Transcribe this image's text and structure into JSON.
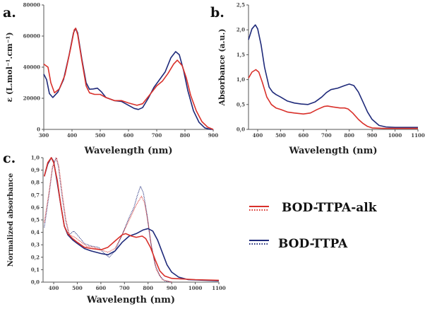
{
  "colors": {
    "BOD-TTPA": "#1f2a7a",
    "BOD-TTPA-alk": "#d9302a"
  },
  "legend": {
    "position": "right",
    "items": [
      {
        "label": "BOD-TTPA-alk",
        "color": "#d9302a",
        "styles": [
          "solid",
          "dotted"
        ]
      },
      {
        "label": "BOD-TTPA",
        "color": "#1f2a7a",
        "styles": [
          "solid",
          "dotted"
        ]
      }
    ]
  },
  "chart_data": [
    {
      "panel": "a.",
      "type": "line",
      "xlabel": "Wavelength (nm)",
      "ylabel": "ε (L.mol⁻¹.cm⁻¹)",
      "xlim": [
        300,
        900
      ],
      "ylim": [
        0,
        80000
      ],
      "xticks": [
        "300",
        "400",
        "500",
        "600",
        "700",
        "800",
        "900"
      ],
      "yticks": [
        "0",
        "20000",
        "40000",
        "60000",
        "80000"
      ],
      "grid": false,
      "series": [
        {
          "compound": "BOD-TTPA",
          "style": "solid",
          "points": [
            [
              300,
              35500
            ],
            [
              310,
              32000
            ],
            [
              320,
              23000
            ],
            [
              332,
              20500
            ],
            [
              350,
              24000
            ],
            [
              370,
              32000
            ],
            [
              390,
              48000
            ],
            [
              405,
              62000
            ],
            [
              413,
              65000
            ],
            [
              420,
              62000
            ],
            [
              435,
              45000
            ],
            [
              450,
              30000
            ],
            [
              462,
              25800
            ],
            [
              475,
              26000
            ],
            [
              490,
              26500
            ],
            [
              505,
              24000
            ],
            [
              520,
              20500
            ],
            [
              550,
              18500
            ],
            [
              575,
              18000
            ],
            [
              600,
              15500
            ],
            [
              620,
              13500
            ],
            [
              635,
              12800
            ],
            [
              650,
              14000
            ],
            [
              670,
              20000
            ],
            [
              690,
              27000
            ],
            [
              710,
              32000
            ],
            [
              730,
              37000
            ],
            [
              750,
              46000
            ],
            [
              767,
              50000
            ],
            [
              780,
              48000
            ],
            [
              795,
              38000
            ],
            [
              810,
              25000
            ],
            [
              830,
              12000
            ],
            [
              850,
              4500
            ],
            [
              870,
              1000
            ],
            [
              890,
              0
            ],
            [
              900,
              0
            ]
          ]
        },
        {
          "compound": "BOD-TTPA-alk",
          "style": "solid",
          "points": [
            [
              300,
              42000
            ],
            [
              315,
              40000
            ],
            [
              325,
              30000
            ],
            [
              338,
              23500
            ],
            [
              355,
              26000
            ],
            [
              375,
              35000
            ],
            [
              395,
              52000
            ],
            [
              408,
              64000
            ],
            [
              413,
              65000
            ],
            [
              420,
              61000
            ],
            [
              435,
              44000
            ],
            [
              450,
              28000
            ],
            [
              462,
              23500
            ],
            [
              480,
              22500
            ],
            [
              500,
              22500
            ],
            [
              520,
              20500
            ],
            [
              550,
              18500
            ],
            [
              575,
              18500
            ],
            [
              600,
              17000
            ],
            [
              630,
              15500
            ],
            [
              650,
              16500
            ],
            [
              670,
              21000
            ],
            [
              700,
              28000
            ],
            [
              720,
              31000
            ],
            [
              740,
              36000
            ],
            [
              760,
              42000
            ],
            [
              773,
              44500
            ],
            [
              790,
              41000
            ],
            [
              805,
              33000
            ],
            [
              820,
              22000
            ],
            [
              840,
              12000
            ],
            [
              860,
              5000
            ],
            [
              880,
              1500
            ],
            [
              900,
              0
            ]
          ]
        }
      ]
    },
    {
      "panel": "b.",
      "type": "line",
      "xlabel": "Wavelength (nm)",
      "ylabel": "Absorbance (a.u.)",
      "xlim": [
        360,
        1100
      ],
      "ylim": [
        0,
        2.5
      ],
      "xticks": [
        "400",
        "500",
        "600",
        "700",
        "800",
        "900",
        "1000",
        "1100"
      ],
      "yticks": [
        "0,0",
        "0,5",
        "1,0",
        "1,5",
        "2,0",
        "2,5"
      ],
      "grid": false,
      "series": [
        {
          "compound": "BOD-TTPA",
          "style": "solid",
          "points": [
            [
              360,
              1.8
            ],
            [
              375,
              2.02
            ],
            [
              390,
              2.1
            ],
            [
              400,
              2.02
            ],
            [
              415,
              1.7
            ],
            [
              430,
              1.25
            ],
            [
              450,
              0.85
            ],
            [
              465,
              0.75
            ],
            [
              480,
              0.7
            ],
            [
              500,
              0.65
            ],
            [
              530,
              0.57
            ],
            [
              560,
              0.53
            ],
            [
              590,
              0.51
            ],
            [
              620,
              0.5
            ],
            [
              650,
              0.55
            ],
            [
              680,
              0.65
            ],
            [
              700,
              0.74
            ],
            [
              720,
              0.8
            ],
            [
              750,
              0.83
            ],
            [
              780,
              0.88
            ],
            [
              800,
              0.91
            ],
            [
              820,
              0.88
            ],
            [
              840,
              0.75
            ],
            [
              860,
              0.55
            ],
            [
              880,
              0.35
            ],
            [
              900,
              0.2
            ],
            [
              930,
              0.08
            ],
            [
              960,
              0.05
            ],
            [
              1000,
              0.04
            ],
            [
              1100,
              0.04
            ]
          ]
        },
        {
          "compound": "BOD-TTPA-alk",
          "style": "solid",
          "points": [
            [
              360,
              1.03
            ],
            [
              375,
              1.15
            ],
            [
              392,
              1.2
            ],
            [
              405,
              1.15
            ],
            [
              420,
              0.95
            ],
            [
              440,
              0.65
            ],
            [
              460,
              0.5
            ],
            [
              480,
              0.43
            ],
            [
              500,
              0.4
            ],
            [
              530,
              0.35
            ],
            [
              560,
              0.33
            ],
            [
              600,
              0.31
            ],
            [
              630,
              0.33
            ],
            [
              660,
              0.4
            ],
            [
              690,
              0.46
            ],
            [
              705,
              0.47
            ],
            [
              730,
              0.45
            ],
            [
              760,
              0.43
            ],
            [
              780,
              0.43
            ],
            [
              795,
              0.41
            ],
            [
              815,
              0.33
            ],
            [
              840,
              0.2
            ],
            [
              860,
              0.12
            ],
            [
              880,
              0.06
            ],
            [
              900,
              0.03
            ],
            [
              950,
              0.02
            ],
            [
              1100,
              0.02
            ]
          ]
        }
      ]
    },
    {
      "panel": "c.",
      "type": "line",
      "xlabel": "Wavelength (nm)",
      "ylabel": "Normalized absorbance",
      "xlim": [
        355,
        1100
      ],
      "ylim": [
        0,
        1.0
      ],
      "xticks": [
        "400",
        "500",
        "600",
        "700",
        "800",
        "900",
        "1000",
        "1100"
      ],
      "yticks": [
        "0,0",
        "0,1",
        "0,2",
        "0,3",
        "0,4",
        "0,5",
        "0,6",
        "0,7",
        "0,8",
        "0,9",
        "1,0"
      ],
      "grid": false,
      "series": [
        {
          "compound": "BOD-TTPA",
          "style": "dotted",
          "points": [
            [
              360,
              0.44
            ],
            [
              380,
              0.7
            ],
            [
              395,
              0.92
            ],
            [
              410,
              1.0
            ],
            [
              420,
              0.93
            ],
            [
              435,
              0.7
            ],
            [
              450,
              0.5
            ],
            [
              465,
              0.38
            ],
            [
              485,
              0.41
            ],
            [
              500,
              0.38
            ],
            [
              530,
              0.31
            ],
            [
              560,
              0.29
            ],
            [
              590,
              0.28
            ],
            [
              610,
              0.24
            ],
            [
              635,
              0.2
            ],
            [
              660,
              0.25
            ],
            [
              690,
              0.38
            ],
            [
              720,
              0.52
            ],
            [
              740,
              0.6
            ],
            [
              755,
              0.7
            ],
            [
              768,
              0.77
            ],
            [
              780,
              0.72
            ],
            [
              795,
              0.55
            ],
            [
              810,
              0.33
            ],
            [
              830,
              0.14
            ],
            [
              850,
              0.05
            ],
            [
              870,
              0.01
            ],
            [
              900,
              0
            ]
          ]
        },
        {
          "compound": "BOD-TTPA-alk",
          "style": "dotted",
          "points": [
            [
              360,
              0.48
            ],
            [
              380,
              0.72
            ],
            [
              395,
              0.93
            ],
            [
              412,
              1.0
            ],
            [
              422,
              0.93
            ],
            [
              437,
              0.7
            ],
            [
              452,
              0.5
            ],
            [
              467,
              0.38
            ],
            [
              490,
              0.36
            ],
            [
              510,
              0.33
            ],
            [
              540,
              0.29
            ],
            [
              570,
              0.28
            ],
            [
              600,
              0.26
            ],
            [
              630,
              0.24
            ],
            [
              660,
              0.27
            ],
            [
              690,
              0.38
            ],
            [
              720,
              0.5
            ],
            [
              750,
              0.62
            ],
            [
              772,
              0.69
            ],
            [
              785,
              0.64
            ],
            [
              800,
              0.48
            ],
            [
              815,
              0.28
            ],
            [
              835,
              0.1
            ],
            [
              860,
              0.02
            ],
            [
              900,
              0
            ]
          ]
        },
        {
          "compound": "BOD-TTPA",
          "style": "solid",
          "points": [
            [
              360,
              0.85
            ],
            [
              375,
              0.95
            ],
            [
              390,
              1.0
            ],
            [
              400,
              0.97
            ],
            [
              415,
              0.8
            ],
            [
              430,
              0.62
            ],
            [
              445,
              0.45
            ],
            [
              460,
              0.38
            ],
            [
              480,
              0.34
            ],
            [
              500,
              0.31
            ],
            [
              530,
              0.27
            ],
            [
              560,
              0.25
            ],
            [
              600,
              0.23
            ],
            [
              630,
              0.22
            ],
            [
              660,
              0.25
            ],
            [
              690,
              0.32
            ],
            [
              720,
              0.37
            ],
            [
              750,
              0.39
            ],
            [
              780,
              0.42
            ],
            [
              800,
              0.43
            ],
            [
              820,
              0.41
            ],
            [
              840,
              0.34
            ],
            [
              860,
              0.24
            ],
            [
              880,
              0.14
            ],
            [
              900,
              0.08
            ],
            [
              930,
              0.04
            ],
            [
              970,
              0.02
            ],
            [
              1100,
              0.01
            ]
          ]
        },
        {
          "compound": "BOD-TTPA-alk",
          "style": "solid",
          "points": [
            [
              360,
              0.85
            ],
            [
              375,
              0.96
            ],
            [
              390,
              1.0
            ],
            [
              400,
              0.96
            ],
            [
              415,
              0.82
            ],
            [
              430,
              0.62
            ],
            [
              445,
              0.45
            ],
            [
              460,
              0.39
            ],
            [
              480,
              0.35
            ],
            [
              500,
              0.32
            ],
            [
              530,
              0.28
            ],
            [
              560,
              0.27
            ],
            [
              600,
              0.26
            ],
            [
              630,
              0.28
            ],
            [
              660,
              0.33
            ],
            [
              690,
              0.38
            ],
            [
              705,
              0.39
            ],
            [
              730,
              0.37
            ],
            [
              750,
              0.36
            ],
            [
              775,
              0.37
            ],
            [
              790,
              0.35
            ],
            [
              810,
              0.28
            ],
            [
              830,
              0.18
            ],
            [
              850,
              0.09
            ],
            [
              870,
              0.05
            ],
            [
              900,
              0.03
            ],
            [
              1000,
              0.02
            ],
            [
              1100,
              0.015
            ]
          ]
        }
      ]
    }
  ]
}
